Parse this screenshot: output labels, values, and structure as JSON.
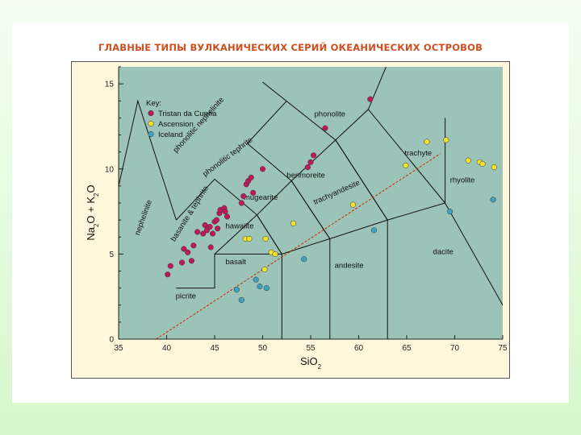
{
  "slide": {
    "title": "ГЛАВНЫЕ ТИПЫ ВУЛКАНИЧЕСКИХ СЕРИЙ ОКЕАНИЧЕСКИХ ОСТРОВОВ"
  },
  "colors": {
    "plot_bg": "#9cc3b8",
    "frame_bg": "#fff8dc",
    "boundary": "#111111",
    "divider_line": "#cc2200",
    "tristan": "#c0185c",
    "ascension": "#f2e230",
    "iceland": "#3ea3bf"
  },
  "chart_data": {
    "type": "scatter",
    "title": "",
    "xlabel": "SiO",
    "xlabel_sub": "2",
    "ylabel": "Na",
    "ylabel_sub1": "2",
    "ylabel_mid": "O + K",
    "ylabel_sub2": "2",
    "ylabel_end": "O",
    "xlim": [
      35,
      75
    ],
    "ylim": [
      0,
      16
    ],
    "xticks": [
      "35",
      "40",
      "45",
      "50",
      "55",
      "60",
      "65",
      "70",
      "75"
    ],
    "yticks": [
      "0",
      "5",
      "10",
      "15"
    ],
    "grid": false,
    "legend_title": "Key:",
    "legend_position": "top-left",
    "series": [
      {
        "name": "Tristan da Cunha",
        "points": [
          [
            40.1,
            3.8
          ],
          [
            40.4,
            4.3
          ],
          [
            41.6,
            4.5
          ],
          [
            41.8,
            5.3
          ],
          [
            42.2,
            5.1
          ],
          [
            42.6,
            4.6
          ],
          [
            42.8,
            5.5
          ],
          [
            43.2,
            6.3
          ],
          [
            43.8,
            6.2
          ],
          [
            44.0,
            6.7
          ],
          [
            44.2,
            6.4
          ],
          [
            44.5,
            6.6
          ],
          [
            44.6,
            5.4
          ],
          [
            44.8,
            6.2
          ],
          [
            45.0,
            6.9
          ],
          [
            45.2,
            7.0
          ],
          [
            45.3,
            6.5
          ],
          [
            45.5,
            7.4
          ],
          [
            45.6,
            7.6
          ],
          [
            46.0,
            7.7
          ],
          [
            46.3,
            7.2
          ],
          [
            46.1,
            7.5
          ],
          [
            47.8,
            8.0
          ],
          [
            48.0,
            8.4
          ],
          [
            48.3,
            9.1
          ],
          [
            48.5,
            9.3
          ],
          [
            48.8,
            9.5
          ],
          [
            49.0,
            8.6
          ],
          [
            50.0,
            10.0
          ],
          [
            54.7,
            10.1
          ],
          [
            55.0,
            10.4
          ],
          [
            55.3,
            10.8
          ],
          [
            56.5,
            12.4
          ],
          [
            61.2,
            14.1
          ]
        ]
      },
      {
        "name": "Ascension",
        "points": [
          [
            48.2,
            5.9
          ],
          [
            48.6,
            5.9
          ],
          [
            50.3,
            5.9
          ],
          [
            50.9,
            5.1
          ],
          [
            51.3,
            5.0
          ],
          [
            50.2,
            4.1
          ],
          [
            53.2,
            6.8
          ],
          [
            59.4,
            7.9
          ],
          [
            64.9,
            10.2
          ],
          [
            67.1,
            11.6
          ],
          [
            69.1,
            11.7
          ],
          [
            71.4,
            10.5
          ],
          [
            72.6,
            10.4
          ],
          [
            72.9,
            10.3
          ],
          [
            74.1,
            10.1
          ]
        ]
      },
      {
        "name": "Iceland",
        "points": [
          [
            47.3,
            2.9
          ],
          [
            47.8,
            2.3
          ],
          [
            49.3,
            3.5
          ],
          [
            49.7,
            3.1
          ],
          [
            50.4,
            3.0
          ],
          [
            54.3,
            4.7
          ],
          [
            61.6,
            6.4
          ],
          [
            69.5,
            7.5
          ],
          [
            74.0,
            8.2
          ]
        ]
      }
    ],
    "field_labels": [
      {
        "text": "phonolite"
      },
      {
        "text": "phonolitic nephelinite"
      },
      {
        "text": "phonolitic tephrite"
      },
      {
        "text": "trachyte"
      },
      {
        "text": "benmoreite"
      },
      {
        "text": "rhyolite"
      },
      {
        "text": "nephelinite"
      },
      {
        "text": "basanite & tephrite"
      },
      {
        "text": "mugearite"
      },
      {
        "text": "trachyandesite"
      },
      {
        "text": "hawaiite"
      },
      {
        "text": "dacite"
      },
      {
        "text": "basalt"
      },
      {
        "text": "andesite"
      },
      {
        "text": "picrite"
      }
    ],
    "boundaries": [
      [
        [
          41,
          3
        ],
        [
          45,
          3
        ],
        [
          45,
          5
        ],
        [
          49.4,
          7.3
        ],
        [
          53,
          9.3
        ],
        [
          57.6,
          11.7
        ],
        [
          61,
          13.5
        ],
        [
          63,
          16.2
        ]
      ],
      [
        [
          45,
          5
        ],
        [
          52,
          5
        ],
        [
          57,
          5.9
        ],
        [
          63,
          7
        ],
        [
          69,
          8
        ],
        [
          77,
          0
        ]
      ],
      [
        [
          45,
          3
        ],
        [
          45,
          5
        ]
      ],
      [
        [
          52,
          0
        ],
        [
          52,
          5
        ],
        [
          49.4,
          7.3
        ],
        [
          45,
          9.4
        ],
        [
          41,
          7
        ]
      ],
      [
        [
          57,
          0
        ],
        [
          57,
          5.9
        ],
        [
          53,
          9.3
        ],
        [
          48.4,
          11.5
        ],
        [
          52.5,
          14
        ]
      ],
      [
        [
          63,
          0
        ],
        [
          63,
          7
        ],
        [
          57.6,
          11.7
        ],
        [
          50,
          15.1
        ]
      ],
      [
        [
          69,
          8
        ],
        [
          69,
          13
        ]
      ],
      [
        [
          35,
          9
        ],
        [
          37,
          14
        ],
        [
          41,
          7
        ]
      ],
      [
        [
          49.4,
          7.3
        ],
        [
          52,
          5
        ]
      ],
      [
        [
          53,
          9.3
        ],
        [
          57,
          5.9
        ]
      ],
      [
        [
          57.6,
          11.7
        ],
        [
          63,
          7
        ]
      ],
      [
        [
          61,
          13.5
        ],
        [
          69,
          8
        ]
      ]
    ],
    "divider_line": [
      [
        38.9,
        0
      ],
      [
        68.5,
        10.9
      ]
    ]
  }
}
